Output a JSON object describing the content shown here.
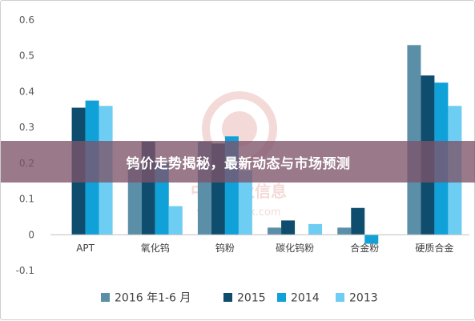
{
  "banner": {
    "title": "钨价走势揭秘，最新动态与市场预测"
  },
  "watermark": {
    "name": "中国产业信息",
    "url": "www.chyxx.com"
  },
  "chart_data": {
    "type": "bar",
    "categories": [
      "APT",
      "氧化钨",
      "钨粉",
      "碳化钨粉",
      "合金粉",
      "硬质合金"
    ],
    "series": [
      {
        "name": "2016 年1-6 月",
        "color": "#5b8fa8",
        "values": [
          0.0,
          0.2,
          0.26,
          0.02,
          0.02,
          0.53
        ]
      },
      {
        "name": "2015",
        "color": "#0e4d6e",
        "values": [
          0.355,
          0.26,
          0.255,
          0.04,
          0.075,
          0.445
        ]
      },
      {
        "name": "2014",
        "color": "#0fa1d8",
        "values": [
          0.375,
          0.2,
          0.275,
          0.0,
          -0.025,
          0.425
        ]
      },
      {
        "name": "2013",
        "color": "#6dcdf2",
        "values": [
          0.36,
          0.08,
          0.18,
          0.03,
          0.0,
          0.36
        ]
      }
    ],
    "yticks": [
      "0.6",
      "0.5",
      "0.4",
      "0.3",
      "0.2",
      "0.1",
      "0",
      "-0.1"
    ],
    "ylim": [
      -0.1,
      0.6
    ],
    "grid": false,
    "legend_position": "bottom"
  }
}
